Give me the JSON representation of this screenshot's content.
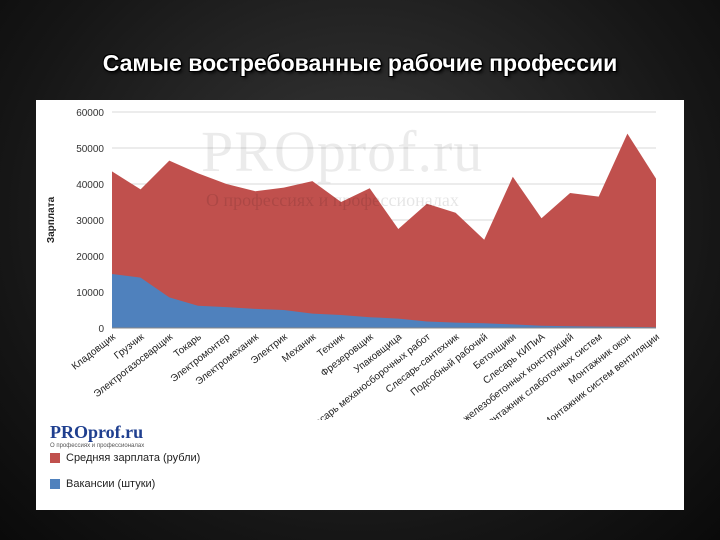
{
  "title": "Самые востребованные рабочие профессии",
  "logo": {
    "main": "PROprof.ru",
    "sub": "О профессиях и профессионалах"
  },
  "watermark": {
    "main": "PROprof.ru",
    "sub": "О профессиях и профессионалах"
  },
  "chart_data": {
    "type": "area",
    "ylabel": "Зарплата",
    "ylim": [
      0,
      60000
    ],
    "yticks": [
      0,
      10000,
      20000,
      30000,
      40000,
      50000,
      60000
    ],
    "categories": [
      "Кладовщик",
      "Грузчик",
      "Электрогазосварщик",
      "Токарь",
      "Электромонтер",
      "Электромеханик",
      "Электрик",
      "Механик",
      "Техник",
      "Фрезеровщик",
      "Упаковщица",
      "Слесарь механосборочных работ",
      "Слесарь-сантехник",
      "Подсобный рабочий",
      "Бетонщики",
      "Слесарь КИПиА",
      "Монтажник железобетонных конструкций",
      "Монтажник слаботочных систем",
      "Монтажник окон",
      "Монтажник систем вентиляции"
    ],
    "series": [
      {
        "name": "Средняя зарплата (рубли)",
        "color": "#c0504d",
        "values": [
          43500,
          38500,
          46500,
          43000,
          40000,
          38000,
          39000,
          40800,
          35000,
          38800,
          27500,
          34500,
          32000,
          24500,
          42000,
          30500,
          37500,
          36500,
          54000,
          41500
        ]
      },
      {
        "name": "Вакансии (штуки)",
        "color": "#4f81bd",
        "values": [
          15000,
          14000,
          8500,
          6200,
          5800,
          5300,
          5000,
          4000,
          3600,
          3000,
          2600,
          1800,
          1500,
          1300,
          1000,
          600,
          500,
          400,
          300,
          200
        ]
      }
    ],
    "grid": true,
    "legend_position": "bottom-left"
  }
}
